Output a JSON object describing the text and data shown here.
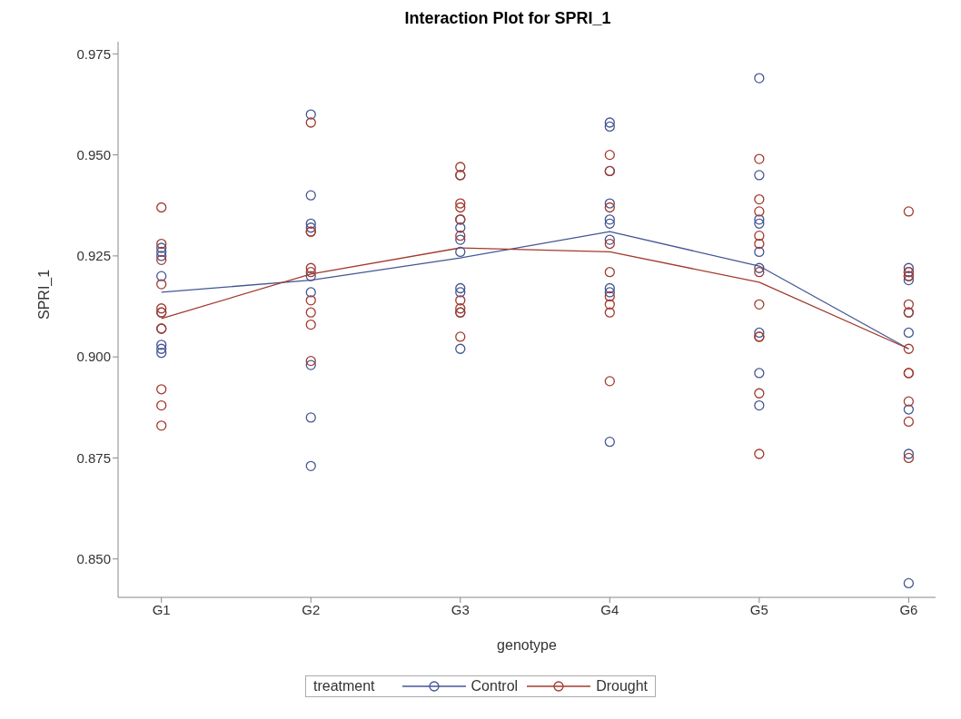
{
  "chart_data": {
    "type": "scatter",
    "title": "Interaction Plot for SPRI_1",
    "xlabel": "genotype",
    "ylabel": "SPRI_1",
    "legend_title": "treatment",
    "categories": [
      "G1",
      "G2",
      "G3",
      "G4",
      "G5",
      "G6"
    ],
    "ylim": [
      0.8405,
      0.978
    ],
    "yticks": [
      {
        "value": 0.85,
        "label": "0.850"
      },
      {
        "value": 0.875,
        "label": "0.875"
      },
      {
        "value": 0.9,
        "label": "0.900"
      },
      {
        "value": 0.925,
        "label": "0.925"
      },
      {
        "value": 0.95,
        "label": "0.950"
      },
      {
        "value": 0.975,
        "label": "0.975"
      }
    ],
    "grid": false,
    "legend": "bottom",
    "marker": "circle",
    "series": [
      {
        "name": "Control",
        "color": "#445694",
        "x": [
          "G1",
          "G1",
          "G1",
          "G1",
          "G1",
          "G1",
          "G1",
          "G1",
          "G1",
          "G2",
          "G2",
          "G2",
          "G2",
          "G2",
          "G2",
          "G2",
          "G2",
          "G2",
          "G3",
          "G3",
          "G3",
          "G3",
          "G3",
          "G3",
          "G3",
          "G3",
          "G3",
          "G4",
          "G4",
          "G4",
          "G4",
          "G4",
          "G4",
          "G4",
          "G4",
          "G4",
          "G4",
          "G5",
          "G5",
          "G5",
          "G5",
          "G5",
          "G5",
          "G5",
          "G5",
          "G5",
          "G6",
          "G6",
          "G6",
          "G6",
          "G6",
          "G6",
          "G6",
          "G6",
          "G6"
        ],
        "values": [
          0.927,
          0.926,
          0.925,
          0.92,
          0.911,
          0.907,
          0.903,
          0.902,
          0.901,
          0.96,
          0.94,
          0.933,
          0.932,
          0.92,
          0.916,
          0.898,
          0.885,
          0.873,
          0.945,
          0.934,
          0.932,
          0.929,
          0.926,
          0.917,
          0.916,
          0.911,
          0.902,
          0.958,
          0.957,
          0.946,
          0.938,
          0.934,
          0.933,
          0.929,
          0.917,
          0.916,
          0.879,
          0.969,
          0.945,
          0.934,
          0.933,
          0.926,
          0.922,
          0.906,
          0.896,
          0.888,
          0.922,
          0.921,
          0.92,
          0.919,
          0.911,
          0.906,
          0.887,
          0.876,
          0.844
        ]
      },
      {
        "name": "Drought",
        "color": "#a23a2e",
        "x": [
          "G1",
          "G1",
          "G1",
          "G1",
          "G1",
          "G1",
          "G1",
          "G1",
          "G1",
          "G1",
          "G2",
          "G2",
          "G2",
          "G2",
          "G2",
          "G2",
          "G2",
          "G2",
          "G2",
          "G3",
          "G3",
          "G3",
          "G3",
          "G3",
          "G3",
          "G3",
          "G3",
          "G3",
          "G3",
          "G4",
          "G4",
          "G4",
          "G4",
          "G4",
          "G4",
          "G4",
          "G4",
          "G4",
          "G5",
          "G5",
          "G5",
          "G5",
          "G5",
          "G5",
          "G5",
          "G5",
          "G5",
          "G5",
          "G5",
          "G6",
          "G6",
          "G6",
          "G6",
          "G6",
          "G6",
          "G6",
          "G6",
          "G6",
          "G6",
          "G6"
        ],
        "values": [
          0.937,
          0.928,
          0.924,
          0.918,
          0.912,
          0.911,
          0.907,
          0.892,
          0.888,
          0.883,
          0.958,
          0.931,
          0.931,
          0.922,
          0.921,
          0.914,
          0.911,
          0.908,
          0.899,
          0.947,
          0.945,
          0.938,
          0.937,
          0.934,
          0.93,
          0.914,
          0.912,
          0.911,
          0.905,
          0.95,
          0.946,
          0.937,
          0.928,
          0.921,
          0.915,
          0.913,
          0.911,
          0.894,
          0.949,
          0.939,
          0.936,
          0.93,
          0.928,
          0.921,
          0.913,
          0.905,
          0.905,
          0.891,
          0.876,
          0.936,
          0.921,
          0.92,
          0.913,
          0.911,
          0.902,
          0.896,
          0.896,
          0.889,
          0.884,
          0.875
        ]
      },
      {
        "type": "line",
        "marker": "none",
        "color": "#445694",
        "values": [
          0.916,
          0.919,
          0.9245,
          0.931,
          0.9225,
          0.902
        ]
      },
      {
        "type": "line",
        "marker": "none",
        "color": "#a23a2e",
        "values": [
          0.9095,
          0.9205,
          0.927,
          0.926,
          0.9185,
          0.902
        ]
      }
    ]
  }
}
